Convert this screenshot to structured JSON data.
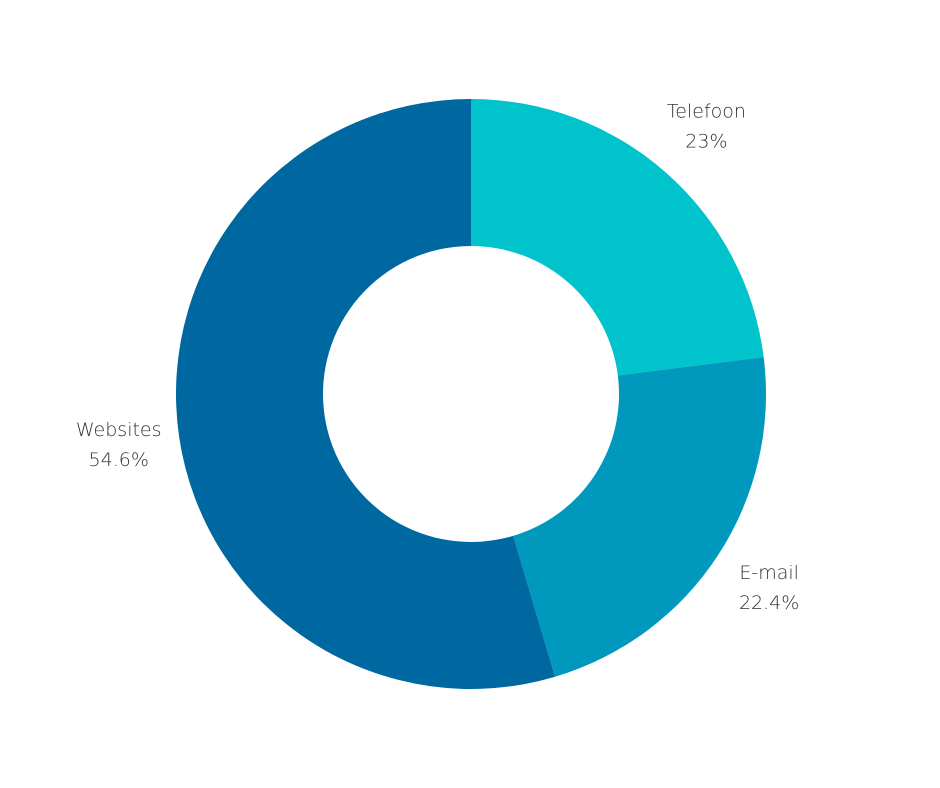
{
  "chart_data": {
    "type": "donut",
    "categories": [
      "Telefoon",
      "E-mail",
      "Websites"
    ],
    "values": [
      23,
      22.4,
      54.6
    ],
    "value_labels": [
      "23%",
      "22.4%",
      "54.6%"
    ],
    "colors": [
      "#00c3cc",
      "#0099bd",
      "#0068a1"
    ]
  }
}
